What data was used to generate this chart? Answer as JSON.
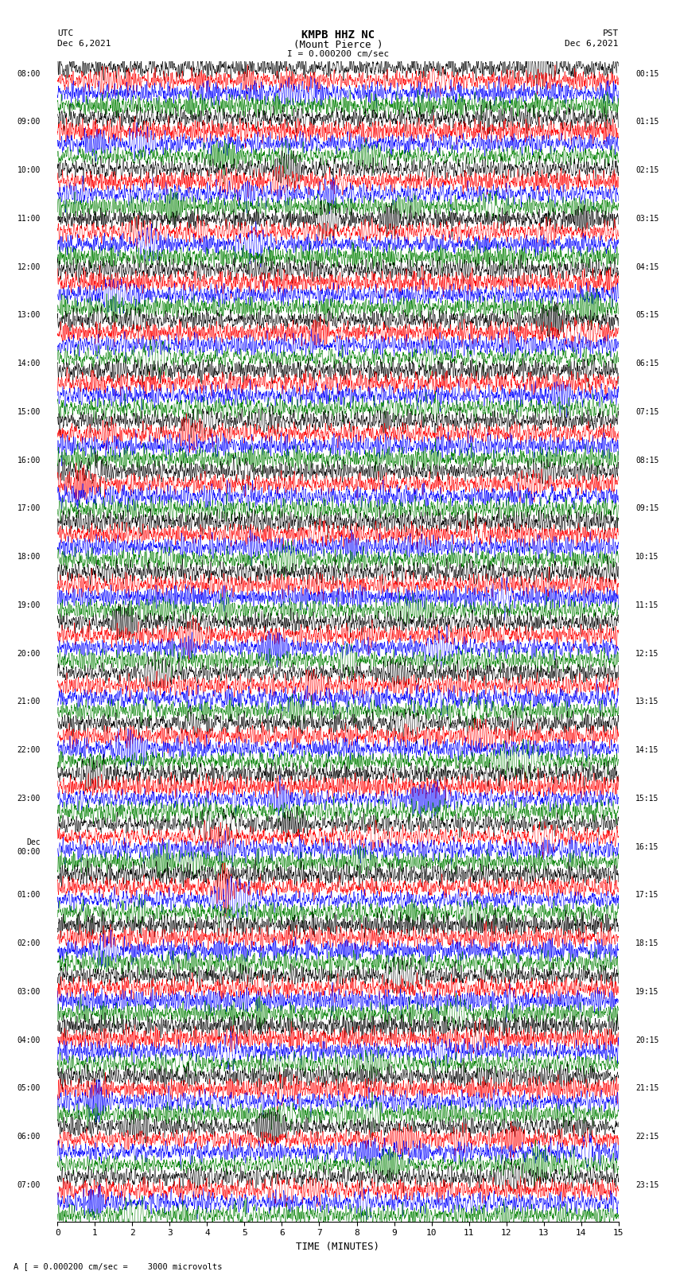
{
  "title_line1": "KMPB HHZ NC",
  "title_line2": "(Mount Pierce )",
  "title_line3": "I = 0.000200 cm/sec",
  "left_header": "UTC",
  "left_date": "Dec 6,2021",
  "right_header": "PST",
  "right_date": "Dec 6,2021",
  "xlabel": "TIME (MINUTES)",
  "bottom_note": "A [ = 0.000200 cm/sec =    3000 microvolts",
  "xlim": [
    0,
    15
  ],
  "xticks": [
    0,
    1,
    2,
    3,
    4,
    5,
    6,
    7,
    8,
    9,
    10,
    11,
    12,
    13,
    14,
    15
  ],
  "left_times": [
    "08:00",
    "",
    "09:00",
    "",
    "10:00",
    "",
    "11:00",
    "",
    "12:00",
    "",
    "13:00",
    "",
    "14:00",
    "",
    "15:00",
    "",
    "16:00",
    "",
    "17:00",
    "",
    "18:00",
    "",
    "19:00",
    "",
    "20:00",
    "",
    "21:00",
    "",
    "22:00",
    "",
    "23:00",
    "",
    "Dec\n00:00",
    "",
    "01:00",
    "",
    "02:00",
    "",
    "03:00",
    "",
    "04:00",
    "",
    "05:00",
    "",
    "06:00",
    "",
    "07:00",
    ""
  ],
  "right_times": [
    "00:15",
    "",
    "01:15",
    "",
    "02:15",
    "",
    "03:15",
    "",
    "04:15",
    "",
    "05:15",
    "",
    "06:15",
    "",
    "07:15",
    "",
    "08:15",
    "",
    "09:15",
    "",
    "10:15",
    "",
    "11:15",
    "",
    "12:15",
    "",
    "13:15",
    "",
    "14:15",
    "",
    "15:15",
    "",
    "16:15",
    "",
    "17:15",
    "",
    "18:15",
    "",
    "19:15",
    "",
    "20:15",
    "",
    "21:15",
    "",
    "22:15",
    "",
    "23:15",
    ""
  ],
  "n_rows": 92,
  "colors_cycle": [
    "black",
    "red",
    "blue",
    "green"
  ],
  "background_color": "white",
  "trace_amplitude": 0.38,
  "seed": 42
}
